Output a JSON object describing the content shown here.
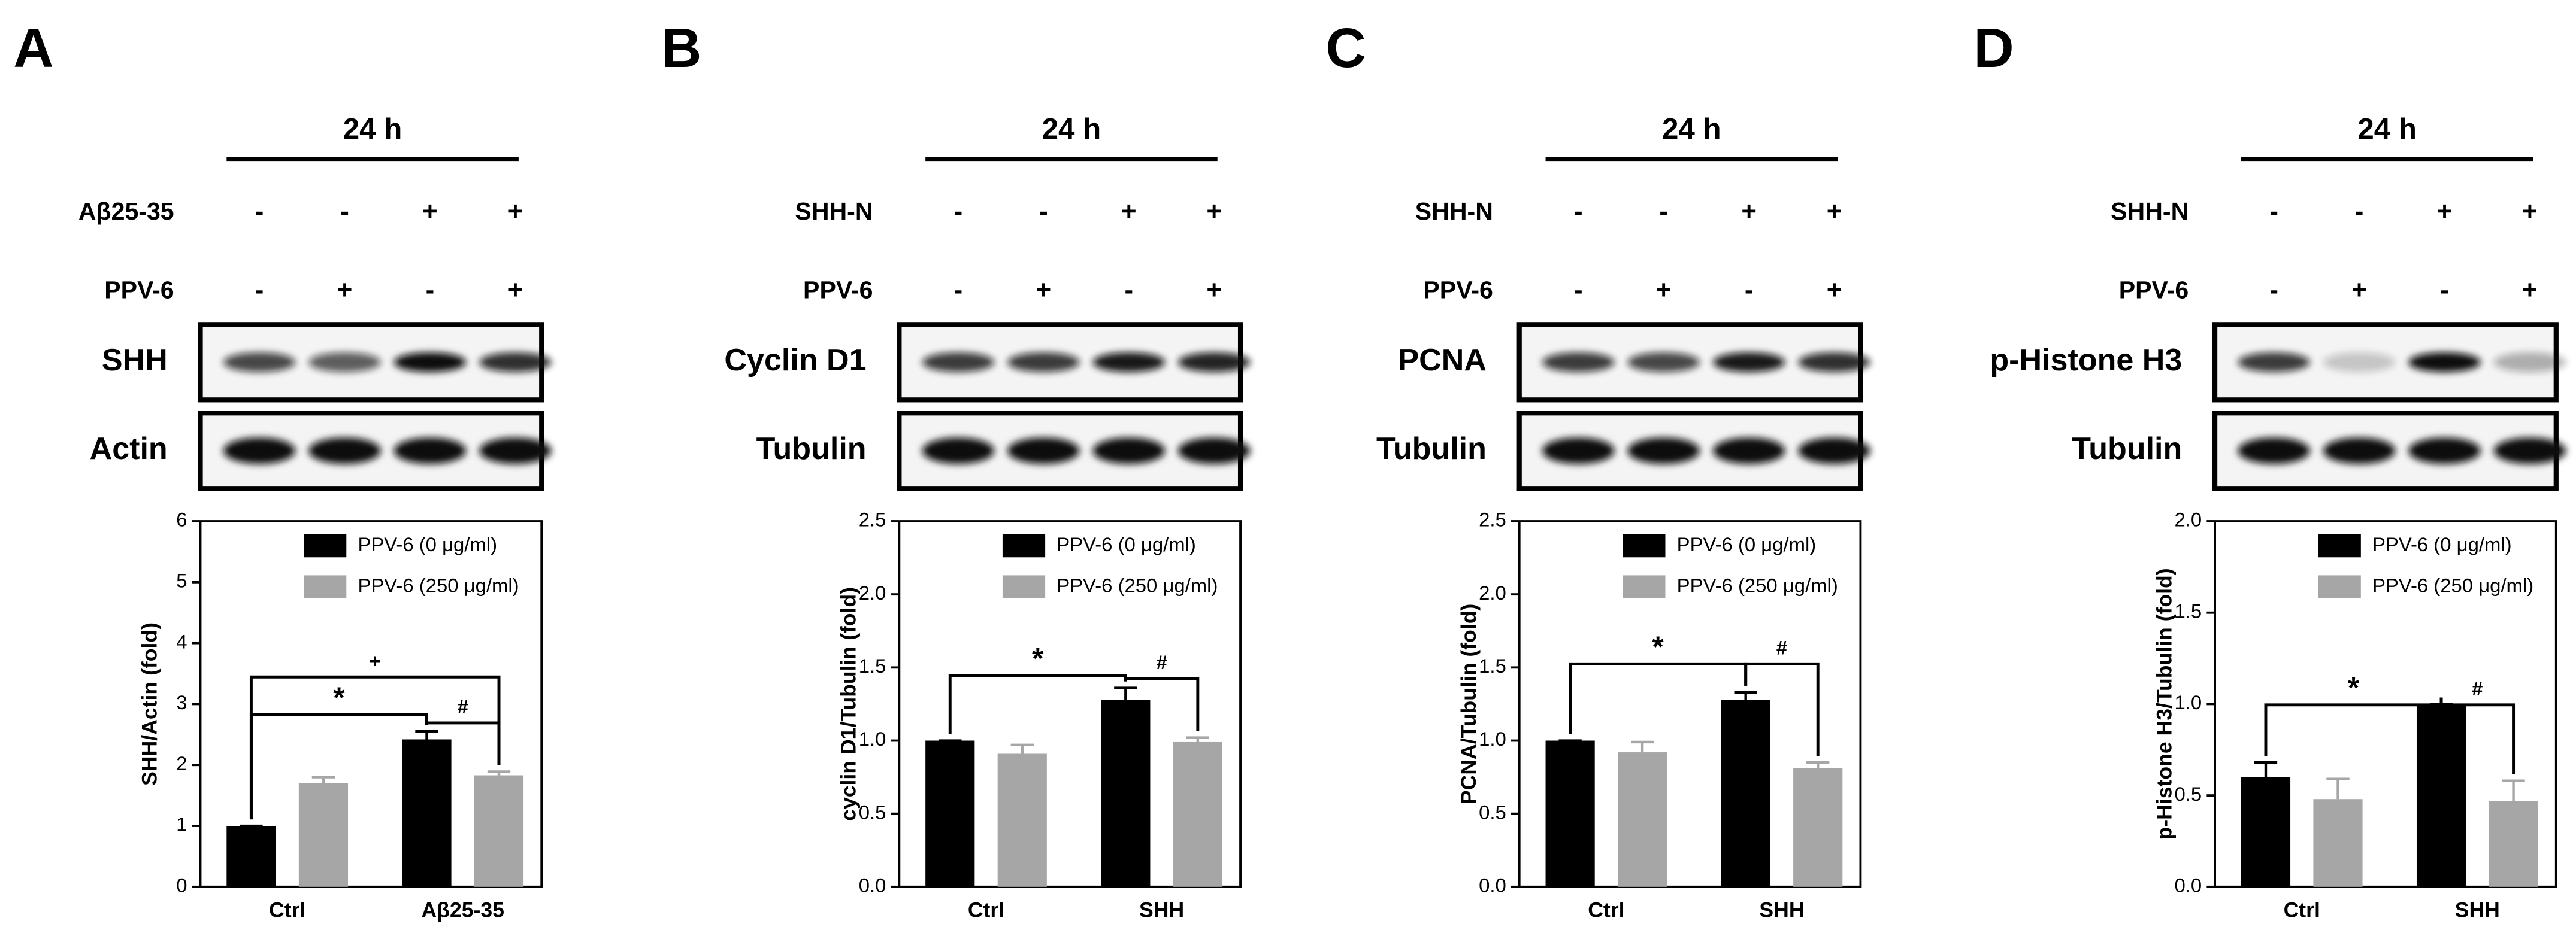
{
  "chart_data": [
    {
      "panel": "A",
      "time": "24 h",
      "treatments": [
        {
          "label": "Aβ25-35",
          "signs": [
            "-",
            "-",
            "+",
            "+"
          ]
        },
        {
          "label": "PPV-6",
          "signs": [
            "-",
            "+",
            "-",
            "+"
          ]
        }
      ],
      "blots": [
        "SHH",
        "Actin"
      ],
      "type": "bar",
      "ylabel": "SHH/Actin (fold)",
      "categories": [
        "Ctrl",
        "Aβ25-35"
      ],
      "series": [
        {
          "name": "PPV-6 (0 μg/ml)",
          "color": "#000000",
          "values": [
            1.0,
            2.42
          ],
          "errors": [
            0,
            0.13
          ]
        },
        {
          "name": "PPV-6 (250 μg/ml)",
          "color": "#a6a6a6",
          "values": [
            1.7,
            1.83
          ],
          "errors": [
            0.1,
            0.06
          ]
        }
      ],
      "ylim": [
        0,
        6
      ],
      "yticks": [
        0,
        1,
        2,
        3,
        4,
        5,
        6
      ],
      "annotations": [
        "*",
        "#",
        "+"
      ]
    },
    {
      "panel": "B",
      "time": "24 h",
      "treatments": [
        {
          "label": "SHH-N",
          "signs": [
            "-",
            "-",
            "+",
            "+"
          ]
        },
        {
          "label": "PPV-6",
          "signs": [
            "-",
            "+",
            "-",
            "+"
          ]
        }
      ],
      "blots": [
        "Cyclin D1",
        "Tubulin"
      ],
      "type": "bar",
      "ylabel": "cyclin D1/Tubulin (fold)",
      "categories": [
        "Ctrl",
        "SHH"
      ],
      "series": [
        {
          "name": "PPV-6 (0 μg/ml)",
          "color": "#000000",
          "values": [
            1.0,
            1.28
          ],
          "errors": [
            0,
            0.08
          ]
        },
        {
          "name": "PPV-6 (250 μg/ml)",
          "color": "#a6a6a6",
          "values": [
            0.91,
            0.99
          ],
          "errors": [
            0.06,
            0.03
          ]
        }
      ],
      "ylim": [
        0,
        2.5
      ],
      "yticks": [
        {
          "value": 0,
          "label": "0.0"
        },
        0.5,
        {
          "value": 1,
          "label": "1.0"
        },
        1.5,
        {
          "value": 2,
          "label": "2.0"
        },
        2.5
      ],
      "annotations": [
        "*",
        "#"
      ]
    },
    {
      "panel": "C",
      "time": "24 h",
      "treatments": [
        {
          "label": "SHH-N",
          "signs": [
            "-",
            "-",
            "+",
            "+"
          ]
        },
        {
          "label": "PPV-6",
          "signs": [
            "-",
            "+",
            "-",
            "+"
          ]
        }
      ],
      "blots": [
        "PCNA",
        "Tubulin"
      ],
      "type": "bar",
      "ylabel": "PCNA/Tubulin (fold)",
      "categories": [
        "Ctrl",
        "SHH"
      ],
      "series": [
        {
          "name": "PPV-6 (0 μg/ml)",
          "color": "#000000",
          "values": [
            1.0,
            1.28
          ],
          "errors": [
            0,
            0.05
          ]
        },
        {
          "name": "PPV-6 (250 μg/ml)",
          "color": "#a6a6a6",
          "values": [
            0.92,
            0.81
          ],
          "errors": [
            0.07,
            0.04
          ]
        }
      ],
      "ylim": [
        0,
        2.5
      ],
      "yticks": [
        {
          "value": 0,
          "label": "0.0"
        },
        0.5,
        {
          "value": 1,
          "label": "1.0"
        },
        1.5,
        {
          "value": 2,
          "label": "2.0"
        },
        2.5
      ],
      "annotations": [
        "*",
        "#"
      ]
    },
    {
      "panel": "D",
      "time": "24 h",
      "treatments": [
        {
          "label": "SHH-N",
          "signs": [
            "-",
            "-",
            "+",
            "+"
          ]
        },
        {
          "label": "PPV-6",
          "signs": [
            "-",
            "+",
            "-",
            "+"
          ]
        }
      ],
      "blots": [
        "p-Histone H3",
        "Tubulin"
      ],
      "type": "bar",
      "ylabel": "p-Histone H3/Tubulin (fold)",
      "categories": [
        "Ctrl",
        "SHH"
      ],
      "series": [
        {
          "name": "PPV-6 (0 μg/ml)",
          "color": "#000000",
          "values": [
            0.6,
            1.0
          ],
          "errors": [
            0.08,
            0
          ]
        },
        {
          "name": "PPV-6 (250 μg/ml)",
          "color": "#a6a6a6",
          "values": [
            0.48,
            0.47
          ],
          "errors": [
            0.11,
            0.11
          ]
        }
      ],
      "ylim": [
        0,
        2
      ],
      "yticks": [
        {
          "value": 0,
          "label": "0.0"
        },
        0.5,
        {
          "value": 1,
          "label": "1.0"
        },
        1.5,
        {
          "value": 2,
          "label": "2.0"
        }
      ],
      "annotations": [
        "*",
        "#"
      ]
    }
  ]
}
